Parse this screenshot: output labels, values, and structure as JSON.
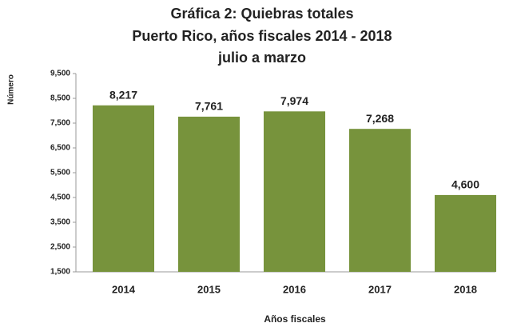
{
  "chart_data": {
    "type": "bar",
    "title": "Gráfica 2: Quiebras totales",
    "subtitle": [
      "Puerto Rico, años fiscales 2014 - 2018",
      "julio a marzo"
    ],
    "y_label": "Número",
    "x_label": "Años fiscales",
    "categories": [
      "2014",
      "2015",
      "2016",
      "2017",
      "2018"
    ],
    "values": [
      8217,
      7761,
      7974,
      7268,
      4600
    ],
    "value_labels": [
      "8,217",
      "7,761",
      "7,974",
      "7,268",
      "4,600"
    ],
    "color": "#77933c",
    "ylim": [
      1500,
      9500
    ],
    "yticks": [
      {
        "value": 1500,
        "label": "1,500"
      },
      {
        "value": 2500,
        "label": "2,500"
      },
      {
        "value": 3500,
        "label": "3,500"
      },
      {
        "value": 4500,
        "label": "4,500"
      },
      {
        "value": 5500,
        "label": "5,500"
      },
      {
        "value": 6500,
        "label": "6,500"
      },
      {
        "value": 7500,
        "label": "7,500"
      },
      {
        "value": 8500,
        "label": "8,500"
      },
      {
        "value": 9500,
        "label": "9,500"
      }
    ],
    "grid": false
  }
}
